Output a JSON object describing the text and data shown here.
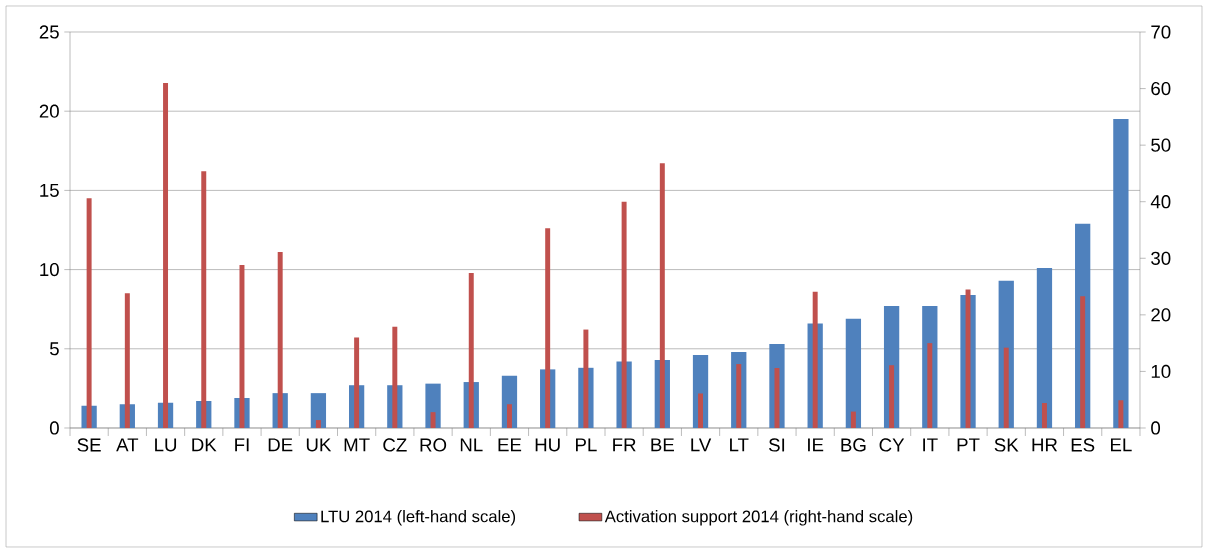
{
  "chart_data": {
    "type": "bar",
    "categories": [
      "SE",
      "AT",
      "LU",
      "DK",
      "FI",
      "DE",
      "UK",
      "MT",
      "CZ",
      "RO",
      "NL",
      "EE",
      "HU",
      "PL",
      "FR",
      "BE",
      "LV",
      "LT",
      "SI",
      "IE",
      "BG",
      "CY",
      "IT",
      "PT",
      "SK",
      "HR",
      "ES",
      "EL"
    ],
    "series": [
      {
        "name": "LTU 2014 (left-hand scale)",
        "color": "#4f81bd",
        "values": [
          1.4,
          1.5,
          1.6,
          1.7,
          1.9,
          2.2,
          2.2,
          2.7,
          2.7,
          2.8,
          2.9,
          3.3,
          3.7,
          3.8,
          4.2,
          4.3,
          4.6,
          4.8,
          5.3,
          6.6,
          6.9,
          7.7,
          7.7,
          8.4,
          9.3,
          10.1,
          12.9,
          19.5
        ]
      },
      {
        "name": "Activation support 2014 (right-hand scale)",
        "color": "#c0504d",
        "axis": "y2",
        "values": [
          40.6,
          23.8,
          61,
          45.4,
          28.8,
          31.1,
          1.4,
          16,
          17.9,
          2.8,
          27.4,
          4.2,
          35.3,
          17.4,
          40,
          46.8,
          6.1,
          11.3,
          10.6,
          24.1,
          2.9,
          11.1,
          15,
          24.5,
          14.2,
          4.4,
          23.3,
          4.9
        ]
      }
    ],
    "ylim": [
      0,
      25
    ],
    "yticks": [
      0,
      5,
      10,
      15,
      20,
      25
    ],
    "y2lim": [
      0,
      70
    ],
    "y2ticks": [
      0,
      10,
      20,
      30,
      40,
      50,
      60,
      70
    ],
    "grid": "y",
    "legend": "bottom"
  }
}
